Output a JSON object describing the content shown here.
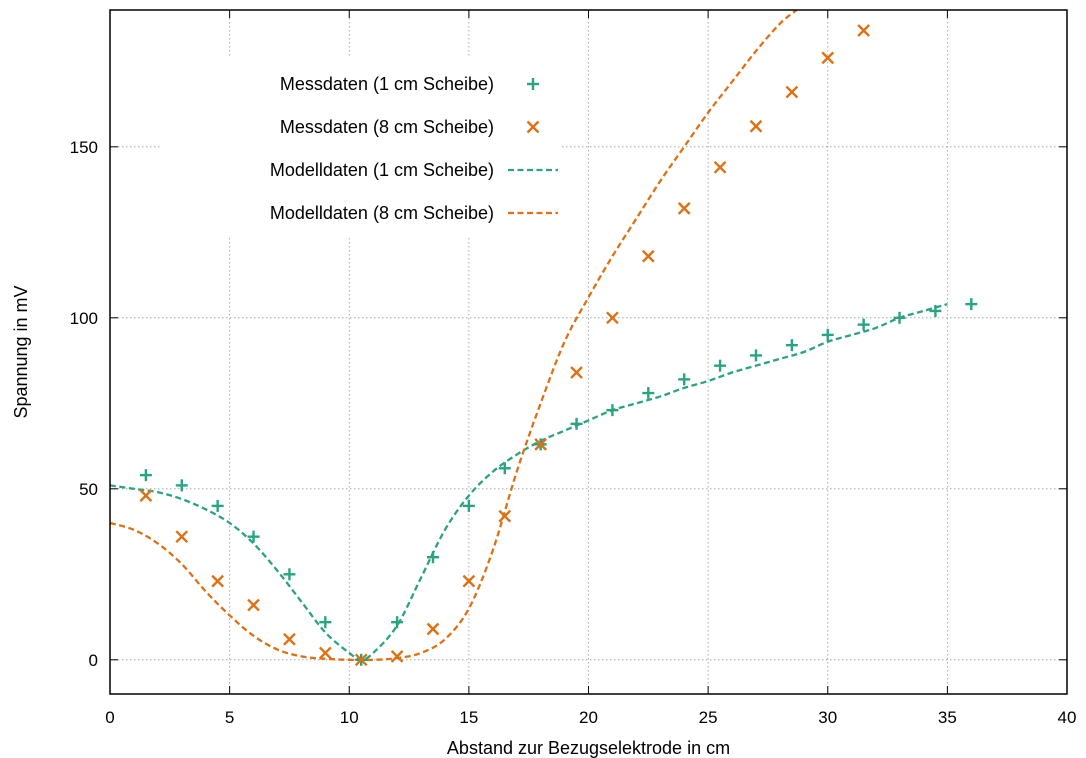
{
  "chart_data": {
    "type": "line",
    "xlabel": "Abstand zur Bezugselektrode in cm",
    "ylabel": "Spannung in mV",
    "xlim": [
      0,
      40
    ],
    "ylim": [
      -10,
      190
    ],
    "xticks": [
      0,
      5,
      10,
      15,
      20,
      25,
      30,
      35,
      40
    ],
    "yticks": [
      0,
      50,
      100,
      150
    ],
    "grid": true,
    "legend_position": "top-left",
    "colors": {
      "green": "#2aa382",
      "orange": "#dd7114"
    },
    "series": [
      {
        "name": "Messdaten (1 cm Scheibe)",
        "style": "marker-plus",
        "color": "#2aa382",
        "x": [
          1.5,
          3,
          4.5,
          6,
          7.5,
          9,
          10.5,
          12,
          13.5,
          15,
          16.5,
          18,
          19.5,
          21,
          22.5,
          24,
          25.5,
          27,
          28.5,
          30,
          31.5,
          33,
          34.5,
          36
        ],
        "y": [
          54,
          51,
          45,
          36,
          25,
          11,
          0,
          11,
          30,
          45,
          56,
          63,
          69,
          73,
          78,
          82,
          86,
          89,
          92,
          95,
          98,
          100,
          102,
          104
        ]
      },
      {
        "name": "Messdaten (8 cm Scheibe)",
        "style": "marker-cross",
        "color": "#dd7114",
        "x": [
          1.5,
          3,
          4.5,
          6,
          7.5,
          9,
          10.5,
          12,
          13.5,
          15,
          16.5,
          18,
          19.5,
          21,
          22.5,
          24,
          25.5,
          27,
          28.5,
          30,
          31.5
        ],
        "y": [
          48,
          36,
          23,
          16,
          6,
          2,
          0,
          1,
          9,
          23,
          42,
          63,
          84,
          100,
          118,
          132,
          144,
          156,
          166,
          176,
          184
        ]
      },
      {
        "name": "Modelldaten (1 cm Scheibe)",
        "style": "dashed-line",
        "color": "#2aa382",
        "x": [
          0,
          1,
          2,
          3,
          4,
          5,
          6,
          7,
          8,
          9,
          10,
          10.5,
          11,
          12,
          13,
          14,
          15,
          16,
          17,
          18,
          19,
          20,
          21,
          22,
          23,
          24,
          25,
          26,
          27,
          28,
          29,
          30,
          31,
          32,
          33,
          34,
          35
        ],
        "y": [
          51,
          50,
          49,
          47,
          44,
          40,
          34,
          26,
          17,
          8,
          2,
          0,
          2,
          10,
          24,
          38,
          48,
          55,
          60,
          64,
          67,
          70,
          73,
          75,
          77,
          79.5,
          81.5,
          84,
          86,
          88,
          90,
          93,
          95,
          97,
          100,
          102,
          104
        ]
      },
      {
        "name": "Modelldaten (8 cm Scheibe)",
        "style": "dashed-line",
        "color": "#dd7114",
        "x": [
          0,
          1,
          2,
          3,
          4,
          5,
          6,
          7,
          8,
          9,
          10,
          11,
          12,
          13,
          14,
          15,
          16,
          17,
          18,
          19,
          20,
          21,
          22,
          23,
          24,
          25,
          26,
          27,
          28,
          28.7
        ],
        "y": [
          40,
          38,
          34,
          28,
          20,
          13,
          7,
          3,
          1,
          0.3,
          0,
          0,
          0.5,
          2,
          6,
          15,
          32,
          55,
          75,
          93,
          106,
          118,
          129,
          140,
          150,
          160,
          169,
          178,
          186,
          190
        ]
      }
    ]
  }
}
